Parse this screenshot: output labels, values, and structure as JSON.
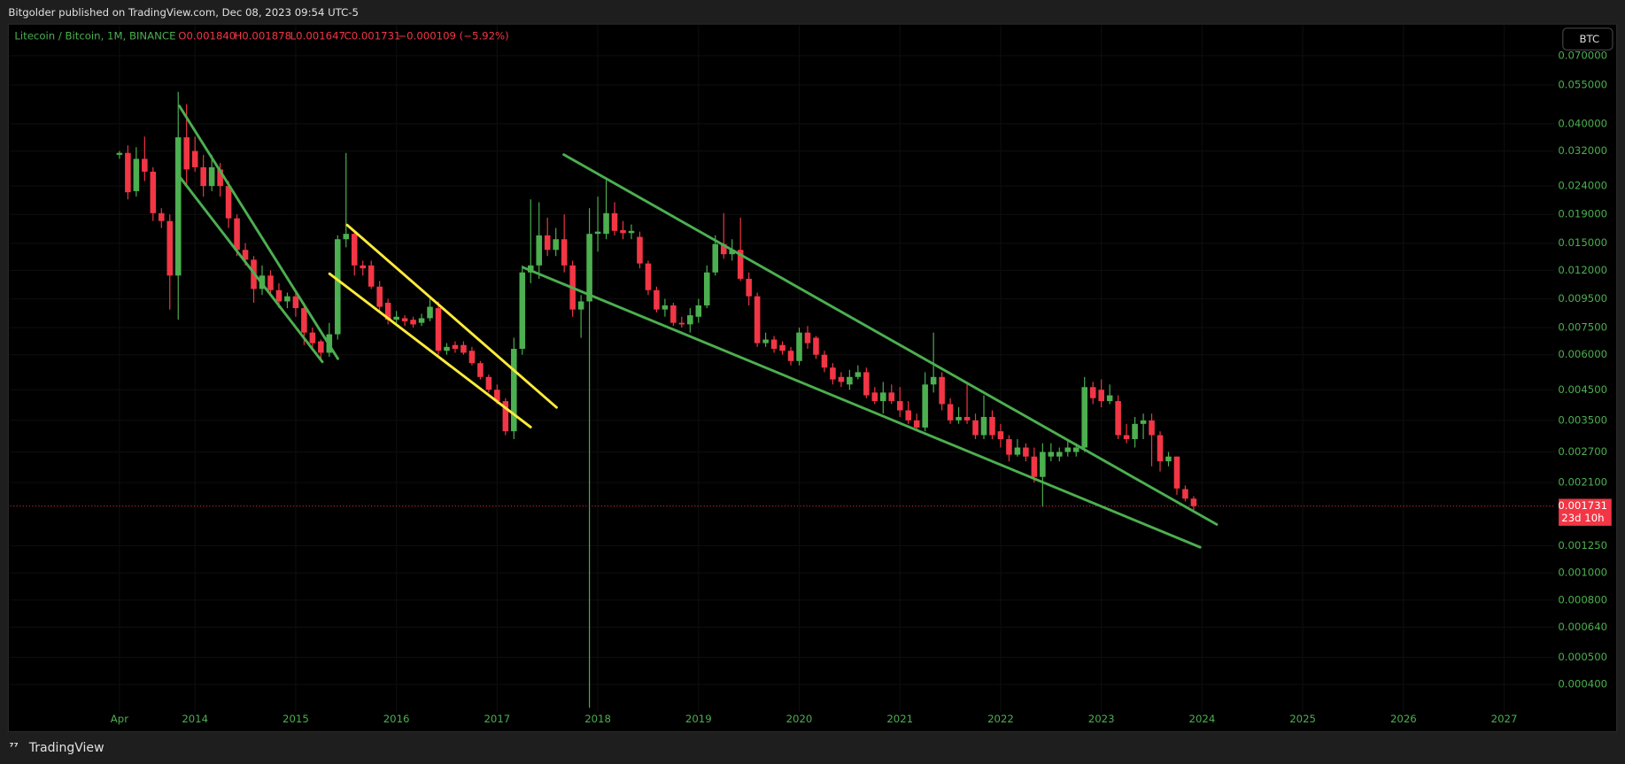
{
  "header": {
    "published": "Bitgolder published on TradingView.com, Dec 08, 2023 09:54 UTC-5",
    "symbol": "Litecoin / Bitcoin, 1M, BINANCE",
    "open": "O0.001840",
    "high": "H0.001878",
    "low": "L0.001647",
    "close": "C0.001731",
    "change": "−0.000109 (−5.92%)",
    "currency_button": "BTC"
  },
  "footer": {
    "logo": "TradingView"
  },
  "chart_data": {
    "type": "candlestick",
    "log_scale": true,
    "grid": true,
    "up_color": "#4caf50",
    "down_color": "#f23645",
    "last_price_label": "0.001731",
    "countdown": "23d 10h",
    "x": [
      "2013-04",
      "2013-05",
      "2013-06",
      "2013-07",
      "2013-08",
      "2013-09",
      "2013-10",
      "2013-11",
      "2013-12",
      "2014-01",
      "2014-02",
      "2014-03",
      "2014-04",
      "2014-05",
      "2014-06",
      "2014-07",
      "2014-08",
      "2014-09",
      "2014-10",
      "2014-11",
      "2014-12",
      "2015-01",
      "2015-02",
      "2015-03",
      "2015-04",
      "2015-05",
      "2015-06",
      "2015-07",
      "2015-08",
      "2015-09",
      "2015-10",
      "2015-11",
      "2015-12",
      "2016-01",
      "2016-02",
      "2016-03",
      "2016-04",
      "2016-05",
      "2016-06",
      "2016-07",
      "2016-08",
      "2016-09",
      "2016-10",
      "2016-11",
      "2016-12",
      "2017-01",
      "2017-02",
      "2017-03",
      "2017-04",
      "2017-05",
      "2017-06",
      "2017-07",
      "2017-08",
      "2017-09",
      "2017-10",
      "2017-11",
      "2017-12",
      "2018-01",
      "2018-02",
      "2018-03",
      "2018-04",
      "2018-05",
      "2018-06",
      "2018-07",
      "2018-08",
      "2018-09",
      "2018-10",
      "2018-11",
      "2018-12",
      "2019-01",
      "2019-02",
      "2019-03",
      "2019-04",
      "2019-05",
      "2019-06",
      "2019-07",
      "2019-08",
      "2019-09",
      "2019-10",
      "2019-11",
      "2019-12",
      "2020-01",
      "2020-02",
      "2020-03",
      "2020-04",
      "2020-05",
      "2020-06",
      "2020-07",
      "2020-08",
      "2020-09",
      "2020-10",
      "2020-11",
      "2020-12",
      "2021-01",
      "2021-02",
      "2021-03",
      "2021-04",
      "2021-05",
      "2021-06",
      "2021-07",
      "2021-08",
      "2021-09",
      "2021-10",
      "2021-11",
      "2021-12",
      "2022-01",
      "2022-02",
      "2022-03",
      "2022-04",
      "2022-05",
      "2022-06",
      "2022-07",
      "2022-08",
      "2022-09",
      "2022-10",
      "2022-11",
      "2022-12",
      "2023-01",
      "2023-02",
      "2023-03",
      "2023-04",
      "2023-05",
      "2023-06",
      "2023-07",
      "2023-08",
      "2023-09",
      "2023-10",
      "2023-11",
      "2023-12"
    ],
    "open": [
      0.031,
      0.0315,
      0.023,
      0.03,
      0.027,
      0.0192,
      0.018,
      0.0115,
      0.0358,
      0.032,
      0.028,
      0.024,
      0.0275,
      0.024,
      0.0184,
      0.0142,
      0.0131,
      0.0103,
      0.0115,
      0.0102,
      0.0093,
      0.0097,
      0.0088,
      0.0072,
      0.0067,
      0.0061,
      0.0071,
      0.0155,
      0.0162,
      0.0125,
      0.0125,
      0.0105,
      0.0092,
      0.008,
      0.0081,
      0.008,
      0.0078,
      0.0081,
      0.0088,
      0.0062,
      0.0065,
      0.0065,
      0.0062,
      0.0056,
      0.005,
      0.0045,
      0.0041,
      0.0032,
      0.0063,
      0.0118,
      0.0125,
      0.016,
      0.0142,
      0.0155,
      0.0125,
      0.0087,
      0.0093,
      0.0162,
      0.0162,
      0.0192,
      0.0167,
      0.0163,
      0.0158,
      0.0127,
      0.0102,
      0.0087,
      0.009,
      0.0078,
      0.0077,
      0.0082,
      0.009,
      0.0118,
      0.0149,
      0.0137,
      0.0142,
      0.0112,
      0.0097,
      0.0066,
      0.0068,
      0.0065,
      0.0062,
      0.0057,
      0.0072,
      0.0069,
      0.006,
      0.0054,
      0.005,
      0.0047,
      0.005,
      0.0052,
      0.0044,
      0.0041,
      0.0044,
      0.0041,
      0.0038,
      0.0035,
      0.0033,
      0.0047,
      0.005,
      0.004,
      0.0035,
      0.0036,
      0.0035,
      0.0031,
      0.0036,
      0.0032,
      0.003,
      0.00264,
      0.0028,
      0.0026,
      0.0022,
      0.0026,
      0.0026,
      0.0027,
      0.0027,
      0.0028,
      0.0046,
      0.0045,
      0.0041,
      0.0041,
      0.0031,
      0.003,
      0.0034,
      0.0035,
      0.0031,
      0.0025,
      0.0026,
      0.00199,
      0.00184
    ],
    "high": [
      0.032,
      0.0335,
      0.033,
      0.036,
      0.028,
      0.02,
      0.019,
      0.052,
      0.047,
      0.036,
      0.031,
      0.031,
      0.029,
      0.025,
      0.019,
      0.015,
      0.0135,
      0.0125,
      0.012,
      0.0108,
      0.01,
      0.01,
      0.0092,
      0.0075,
      0.0068,
      0.0078,
      0.016,
      0.0315,
      0.0165,
      0.013,
      0.013,
      0.011,
      0.0095,
      0.0086,
      0.0083,
      0.0082,
      0.0084,
      0.0095,
      0.0093,
      0.0066,
      0.0067,
      0.0067,
      0.0064,
      0.0057,
      0.0051,
      0.0047,
      0.0042,
      0.0069,
      0.0125,
      0.0215,
      0.021,
      0.0185,
      0.017,
      0.019,
      0.013,
      0.0098,
      0.02,
      0.022,
      0.0252,
      0.021,
      0.018,
      0.0175,
      0.0165,
      0.013,
      0.0105,
      0.0095,
      0.0092,
      0.0082,
      0.0088,
      0.0095,
      0.0125,
      0.016,
      0.0192,
      0.0155,
      0.0185,
      0.0118,
      0.01,
      0.0072,
      0.007,
      0.0067,
      0.0064,
      0.0075,
      0.0076,
      0.007,
      0.0062,
      0.0056,
      0.0052,
      0.0053,
      0.0055,
      0.0054,
      0.0046,
      0.0048,
      0.0047,
      0.0046,
      0.0041,
      0.0037,
      0.0052,
      0.0072,
      0.0052,
      0.0042,
      0.0039,
      0.0047,
      0.0037,
      0.0043,
      0.0038,
      0.0034,
      0.0031,
      0.003,
      0.0029,
      0.0028,
      0.0029,
      0.0029,
      0.0028,
      0.003,
      0.0029,
      0.005,
      0.0048,
      0.0049,
      0.0047,
      0.0043,
      0.0034,
      0.0036,
      0.0037,
      0.0037,
      0.0032,
      0.0027,
      0.0026,
      0.00205,
      0.001878
    ],
    "low": [
      0.03,
      0.0215,
      0.022,
      0.025,
      0.018,
      0.017,
      0.0087,
      0.008,
      0.024,
      0.027,
      0.022,
      0.023,
      0.022,
      0.017,
      0.0135,
      0.0125,
      0.0092,
      0.0098,
      0.0097,
      0.0088,
      0.0088,
      0.0082,
      0.0065,
      0.0062,
      0.0058,
      0.0059,
      0.0068,
      0.0145,
      0.0115,
      0.0115,
      0.0103,
      0.0085,
      0.0077,
      0.0078,
      0.0076,
      0.0075,
      0.0076,
      0.0079,
      0.006,
      0.006,
      0.0061,
      0.006,
      0.0055,
      0.0049,
      0.0044,
      0.004,
      0.0031,
      0.003,
      0.006,
      0.0108,
      0.0112,
      0.0135,
      0.0135,
      0.0118,
      0.0082,
      0.0069,
      0.00033,
      0.014,
      0.0155,
      0.016,
      0.0155,
      0.0155,
      0.0122,
      0.0098,
      0.0085,
      0.0082,
      0.0076,
      0.0075,
      0.0072,
      0.0078,
      0.0088,
      0.0115,
      0.0132,
      0.013,
      0.011,
      0.009,
      0.0064,
      0.0064,
      0.0061,
      0.006,
      0.0055,
      0.0055,
      0.0063,
      0.0058,
      0.0052,
      0.0047,
      0.0046,
      0.0045,
      0.0049,
      0.0042,
      0.004,
      0.0037,
      0.004,
      0.0036,
      0.0034,
      0.0032,
      0.0032,
      0.0044,
      0.0038,
      0.0034,
      0.0034,
      0.0034,
      0.003,
      0.003,
      0.003,
      0.0028,
      0.0025,
      0.0026,
      0.0025,
      0.0021,
      0.00172,
      0.0025,
      0.0025,
      0.0026,
      0.0026,
      0.0027,
      0.004,
      0.0039,
      0.004,
      0.003,
      0.0029,
      0.0028,
      0.003,
      0.0024,
      0.0023,
      0.0024,
      0.0019,
      0.0018,
      0.001647
    ],
    "close": [
      0.0315,
      0.0228,
      0.03,
      0.027,
      0.0192,
      0.018,
      0.0115,
      0.0358,
      0.0275,
      0.028,
      0.024,
      0.028,
      0.024,
      0.0184,
      0.0142,
      0.0131,
      0.0103,
      0.0115,
      0.0102,
      0.0093,
      0.0097,
      0.0088,
      0.0072,
      0.0066,
      0.0061,
      0.0071,
      0.0155,
      0.0162,
      0.0125,
      0.0122,
      0.0105,
      0.0089,
      0.008,
      0.0082,
      0.0079,
      0.0077,
      0.0081,
      0.0089,
      0.0062,
      0.0064,
      0.0063,
      0.0061,
      0.0056,
      0.005,
      0.0045,
      0.0041,
      0.0032,
      0.0063,
      0.0118,
      0.0125,
      0.016,
      0.0142,
      0.0155,
      0.0125,
      0.0087,
      0.0093,
      0.0162,
      0.0165,
      0.0192,
      0.0166,
      0.0163,
      0.0166,
      0.0127,
      0.0102,
      0.0087,
      0.009,
      0.0078,
      0.0077,
      0.0083,
      0.009,
      0.0118,
      0.0149,
      0.0137,
      0.0142,
      0.0112,
      0.0097,
      0.0066,
      0.0068,
      0.0063,
      0.0062,
      0.0057,
      0.0072,
      0.0066,
      0.006,
      0.0054,
      0.0049,
      0.0048,
      0.005,
      0.0052,
      0.0043,
      0.0041,
      0.0044,
      0.0041,
      0.0038,
      0.0035,
      0.0033,
      0.0047,
      0.005,
      0.004,
      0.0035,
      0.0036,
      0.0035,
      0.0031,
      0.0036,
      0.0031,
      0.003,
      0.00264,
      0.0028,
      0.0026,
      0.0022,
      0.0027,
      0.0027,
      0.0027,
      0.0028,
      0.0028,
      0.0046,
      0.0042,
      0.0041,
      0.0043,
      0.0031,
      0.003,
      0.0034,
      0.0035,
      0.0031,
      0.0025,
      0.0026,
      0.002,
      0.00184,
      0.001731
    ],
    "xlim": [
      "2012-03",
      "2027-07"
    ],
    "xticks": [
      {
        "value": "2013-04",
        "label": "Apr"
      },
      {
        "value": "2014-01",
        "label": "2014"
      },
      {
        "value": "2015-01",
        "label": "2015"
      },
      {
        "value": "2016-01",
        "label": "2016"
      },
      {
        "value": "2017-01",
        "label": "2017"
      },
      {
        "value": "2018-01",
        "label": "2018"
      },
      {
        "value": "2019-01",
        "label": "2019"
      },
      {
        "value": "2020-01",
        "label": "2020"
      },
      {
        "value": "2021-01",
        "label": "2021"
      },
      {
        "value": "2022-01",
        "label": "2022"
      },
      {
        "value": "2023-01",
        "label": "2023"
      },
      {
        "value": "2024-01",
        "label": "2024"
      },
      {
        "value": "2025-01",
        "label": "2025"
      },
      {
        "value": "2026-01",
        "label": "2026"
      },
      {
        "value": "2027-01",
        "label": "2027"
      }
    ],
    "ylim": [
      0.00033,
      0.087
    ],
    "yticks": [
      {
        "value": 0.07,
        "label": "0.070000"
      },
      {
        "value": 0.055,
        "label": "0.055000"
      },
      {
        "value": 0.04,
        "label": "0.040000"
      },
      {
        "value": 0.032,
        "label": "0.032000"
      },
      {
        "value": 0.024,
        "label": "0.024000"
      },
      {
        "value": 0.019,
        "label": "0.019000"
      },
      {
        "value": 0.015,
        "label": "0.015000"
      },
      {
        "value": 0.012,
        "label": "0.012000"
      },
      {
        "value": 0.0095,
        "label": "0.009500"
      },
      {
        "value": 0.0075,
        "label": "0.007500"
      },
      {
        "value": 0.006,
        "label": "0.006000"
      },
      {
        "value": 0.0045,
        "label": "0.004500"
      },
      {
        "value": 0.0035,
        "label": "0.003500"
      },
      {
        "value": 0.0027,
        "label": "0.002700"
      },
      {
        "value": 0.0021,
        "label": "0.002100"
      },
      {
        "value": 0.00125,
        "label": "0.001250"
      },
      {
        "value": 0.001,
        "label": "0.001000"
      },
      {
        "value": 0.0008,
        "label": "0.000800"
      },
      {
        "value": 0.00064,
        "label": "0.000640"
      },
      {
        "value": 0.0005,
        "label": "0.000500"
      },
      {
        "value": 0.0004,
        "label": "0.000400"
      }
    ]
  }
}
